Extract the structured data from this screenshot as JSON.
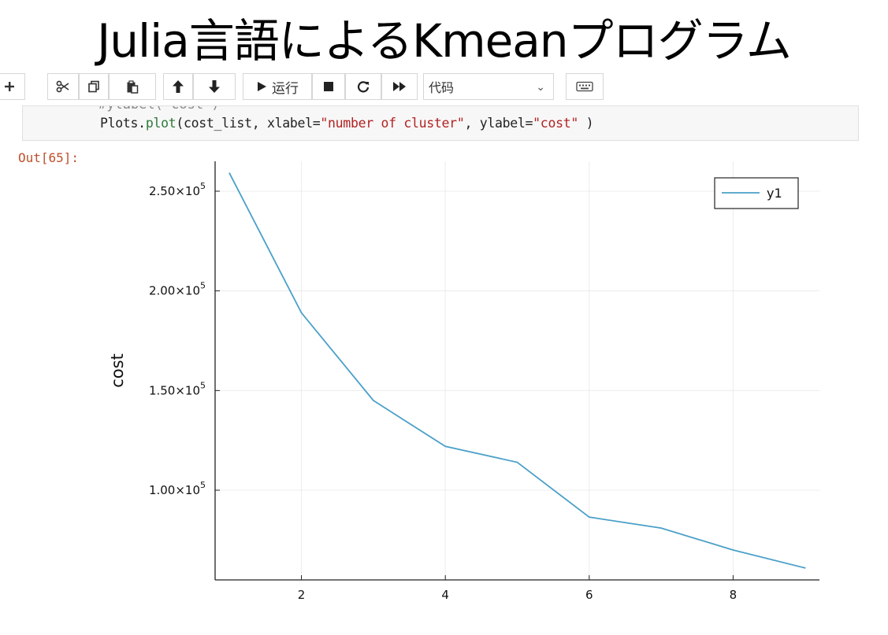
{
  "slide": {
    "title": "Julia言語によるKmeanプログラム"
  },
  "toolbar": {
    "items": [
      {
        "name": "insert-cell-below-button",
        "label": "",
        "icon": "plus-icon"
      },
      {
        "name": "cut-cells-button",
        "label": "",
        "icon": "scissors-icon"
      },
      {
        "name": "copy-cells-button",
        "label": "",
        "icon": "copy-icon"
      },
      {
        "name": "paste-cells-button",
        "label": "",
        "icon": "paste-icon"
      },
      {
        "name": "move-cells-up-button",
        "label": "",
        "icon": "arrow-up-icon"
      },
      {
        "name": "move-cells-down-button",
        "label": "",
        "icon": "arrow-down-icon"
      },
      {
        "name": "run-button",
        "label": "运行",
        "icon": "play-icon"
      },
      {
        "name": "interrupt-kernel-button",
        "label": "",
        "icon": "stop-icon"
      },
      {
        "name": "restart-kernel-button",
        "label": "",
        "icon": "refresh-icon"
      },
      {
        "name": "restart-run-all-button",
        "label": "",
        "icon": "fast-forward-icon"
      },
      {
        "name": "keyboard-shortcuts-button",
        "label": "",
        "icon": "keyboard-icon"
      }
    ],
    "cell_type": {
      "selected": "代码"
    }
  },
  "cell": {
    "code_prev_fragment": "#ylabel(\"cost\")",
    "code": {
      "prefix": "Plots.",
      "func": "plot",
      "args_a": "(cost_list, xlabel=",
      "str1": "\"number of cluster\"",
      "args_b": ", ylabel=",
      "str2": "\"cost\"",
      "suffix": " )"
    },
    "out_prompt": "Out[65]:"
  },
  "chart_data": {
    "type": "line",
    "title": "",
    "xlabel": "",
    "ylabel": "cost",
    "x": [
      1,
      2,
      3,
      4,
      5,
      6,
      7,
      8,
      9
    ],
    "series": [
      {
        "name": "y1",
        "values": [
          259000,
          189000,
          145000,
          122000,
          114000,
          86500,
          81000,
          70000,
          61000
        ],
        "color": "#4aa0c8"
      }
    ],
    "xlim": [
      0.8,
      9.2
    ],
    "ylim": [
      55000,
      265000
    ],
    "xticks": [
      2,
      4,
      6,
      8
    ],
    "yticks": [
      {
        "value": 100000,
        "label": "1.00×10",
        "exp": "5"
      },
      {
        "value": 150000,
        "label": "1.50×10",
        "exp": "5"
      },
      {
        "value": 200000,
        "label": "2.00×10",
        "exp": "5"
      },
      {
        "value": 250000,
        "label": "2.50×10",
        "exp": "5"
      }
    ],
    "grid": true,
    "legend": "top-right"
  }
}
